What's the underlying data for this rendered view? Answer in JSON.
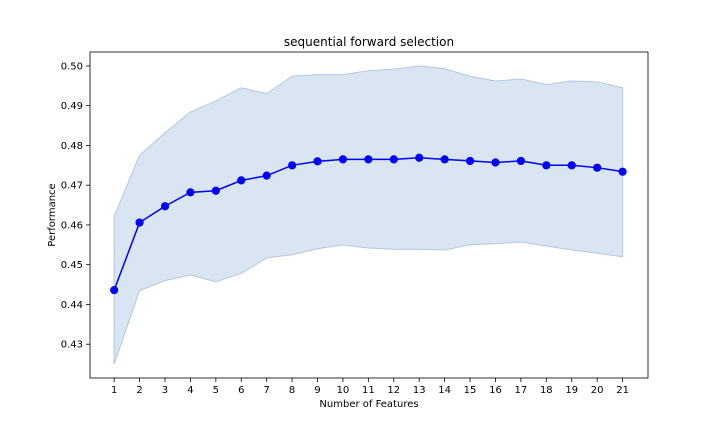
{
  "chart_data": {
    "type": "line",
    "title": "sequential forward selection",
    "xlabel": "Number of Features",
    "ylabel": "Performance",
    "x": [
      1,
      2,
      3,
      4,
      5,
      6,
      7,
      8,
      9,
      10,
      11,
      12,
      13,
      14,
      15,
      16,
      17,
      18,
      19,
      20,
      21
    ],
    "x_ticks": [
      "1",
      "2",
      "3",
      "4",
      "5",
      "6",
      "7",
      "8",
      "9",
      "10",
      "11",
      "12",
      "13",
      "14",
      "15",
      "16",
      "17",
      "18",
      "19",
      "20",
      "21"
    ],
    "ylim": [
      0.4215,
      0.5035
    ],
    "xlim": [
      0.05,
      22.0
    ],
    "y_ticks": [
      "0.43",
      "0.44",
      "0.45",
      "0.46",
      "0.47",
      "0.48",
      "0.49",
      "0.50"
    ],
    "y_tick_values": [
      0.43,
      0.44,
      0.45,
      0.46,
      0.47,
      0.48,
      0.49,
      0.5
    ],
    "series": [
      {
        "values": [
          0.4436,
          0.4606,
          0.4647,
          0.4682,
          0.4686,
          0.4712,
          0.4724,
          0.475,
          0.476,
          0.4765,
          0.4765,
          0.4765,
          0.4769,
          0.4765,
          0.4761,
          0.4757,
          0.4761,
          0.475,
          0.475,
          0.4744,
          0.4734
        ],
        "upper": [
          0.4622,
          0.4775,
          0.4832,
          0.4884,
          0.4912,
          0.4945,
          0.493,
          0.4974,
          0.4978,
          0.4978,
          0.4988,
          0.4992,
          0.5,
          0.4993,
          0.4974,
          0.4962,
          0.4967,
          0.4953,
          0.4962,
          0.496,
          0.4945
        ],
        "lower": [
          0.425,
          0.4435,
          0.446,
          0.4474,
          0.4457,
          0.4478,
          0.4517,
          0.4525,
          0.454,
          0.455,
          0.4542,
          0.4539,
          0.4539,
          0.4537,
          0.455,
          0.4553,
          0.4557,
          0.4547,
          0.4537,
          0.4529,
          0.452
        ]
      }
    ],
    "colors": {
      "line": "#0000ff",
      "band": "#c5d7e8",
      "band_edge": "#b0c8de"
    },
    "grid": false,
    "legend": "none"
  }
}
